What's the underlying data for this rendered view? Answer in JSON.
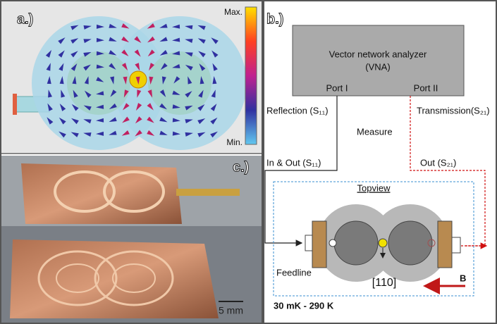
{
  "panel_a": {
    "label": "a.)",
    "max": "Max.",
    "min": "Min."
  },
  "panel_b": {
    "label": "b.)",
    "vna_title": "Vector network analyzer",
    "vna_abbr": "(VNA)",
    "port_1": "Port I",
    "port_2": "Port II",
    "reflection": "Reflection (S₁₁)",
    "transmission": "Transmission(S₂₁)",
    "measure": "Measure",
    "in_out": "In & Out (S₁₁)",
    "out": "Out (S₂₁)",
    "topview": "Topview",
    "feedline": "Feedline",
    "direction": "[110]",
    "field": "B",
    "temperature": "30 mK - 290 K"
  },
  "panel_c": {
    "label": "c.)",
    "scale": "5 mm"
  }
}
